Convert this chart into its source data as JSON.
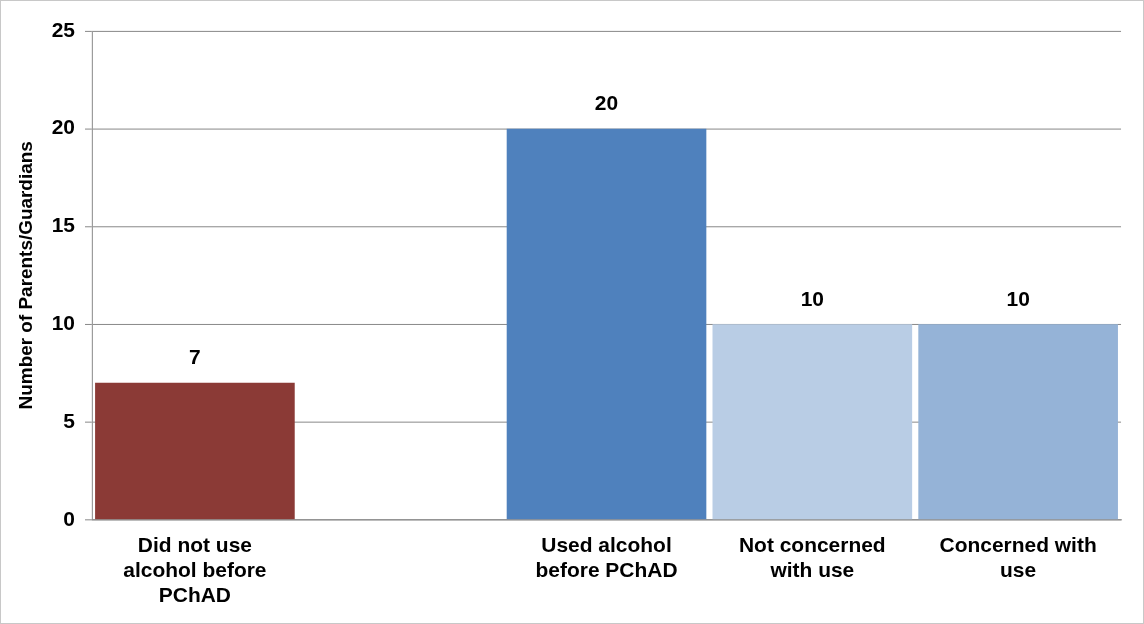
{
  "chart_data": {
    "type": "bar",
    "ylabel": "Number of Parents/Guardians",
    "categories": [
      "Did not use alcohol before PChAD",
      null,
      "Used alcohol before PChAD",
      "Not concerned with use",
      "Concerned with use"
    ],
    "values": [
      7,
      null,
      20,
      10,
      10
    ],
    "colors": [
      "#8b3a36",
      "#ffffff",
      "#4f81bd",
      "#b9cde5",
      "#95b3d7"
    ],
    "ylim": [
      0,
      25
    ],
    "yticks": [
      0,
      5,
      10,
      15,
      20,
      25
    ],
    "grid": "y",
    "data_labels": true,
    "legend": false
  }
}
